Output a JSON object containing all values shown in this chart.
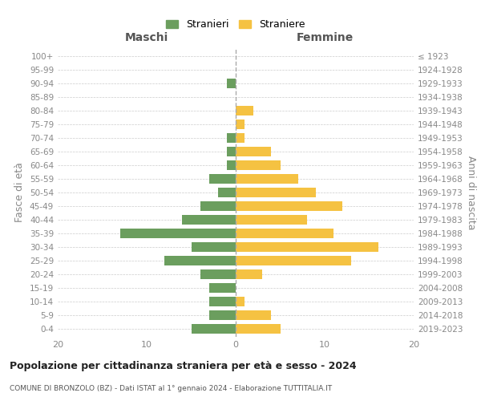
{
  "age_groups": [
    "0-4",
    "5-9",
    "10-14",
    "15-19",
    "20-24",
    "25-29",
    "30-34",
    "35-39",
    "40-44",
    "45-49",
    "50-54",
    "55-59",
    "60-64",
    "65-69",
    "70-74",
    "75-79",
    "80-84",
    "85-89",
    "90-94",
    "95-99",
    "100+"
  ],
  "birth_years": [
    "2019-2023",
    "2014-2018",
    "2009-2013",
    "2004-2008",
    "1999-2003",
    "1994-1998",
    "1989-1993",
    "1984-1988",
    "1979-1983",
    "1974-1978",
    "1969-1973",
    "1964-1968",
    "1959-1963",
    "1954-1958",
    "1949-1953",
    "1944-1948",
    "1939-1943",
    "1934-1938",
    "1929-1933",
    "1924-1928",
    "≤ 1923"
  ],
  "males": [
    5,
    3,
    3,
    3,
    4,
    8,
    5,
    13,
    6,
    4,
    2,
    3,
    1,
    1,
    1,
    0,
    0,
    0,
    1,
    0,
    0
  ],
  "females": [
    5,
    4,
    1,
    0,
    3,
    13,
    16,
    11,
    8,
    12,
    9,
    7,
    5,
    4,
    1,
    1,
    2,
    0,
    0,
    0,
    0
  ],
  "male_color": "#6b9e5e",
  "female_color": "#f5c242",
  "title": "Popolazione per cittadinanza straniera per età e sesso - 2024",
  "subtitle": "COMUNE DI BRONZOLO (BZ) - Dati ISTAT al 1° gennaio 2024 - Elaborazione TUTTITALIA.IT",
  "left_label": "Maschi",
  "right_label": "Femmine",
  "ylabel_left": "Fasce di età",
  "ylabel_right": "Anni di nascita",
  "legend_male": "Stranieri",
  "legend_female": "Straniere",
  "xlim": 20,
  "background_color": "#ffffff",
  "grid_color": "#cccccc"
}
